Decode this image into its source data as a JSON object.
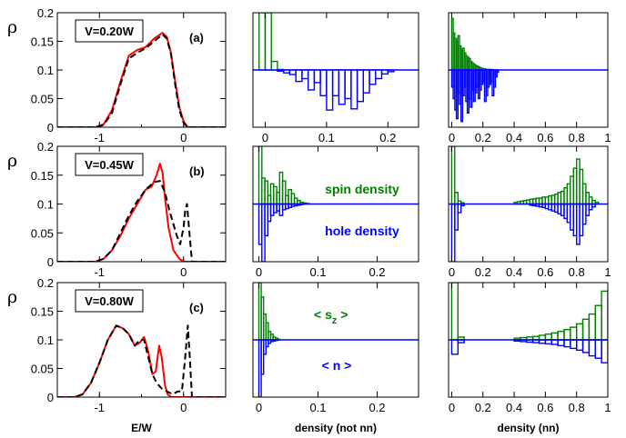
{
  "chart_data": [
    {
      "type": "line",
      "panel": "a",
      "row": 0,
      "col": 0,
      "panel_label": "(a)",
      "box_label": "V=0.20W",
      "ylabel": "ρ",
      "xlabel": "",
      "xlim": [
        -1.5,
        0.5
      ],
      "ylim": [
        0,
        0.2
      ],
      "xticks": [
        -1,
        0
      ],
      "yticks": [
        0,
        0.05,
        0.1,
        0.15,
        0.2
      ],
      "series": [
        {
          "style": "red-solid",
          "x": [
            -1.5,
            -1.05,
            -0.95,
            -0.85,
            -0.75,
            -0.65,
            -0.55,
            -0.45,
            -0.35,
            -0.25,
            -0.2,
            -0.15,
            -0.1,
            -0.05,
            0.0,
            0.05,
            0.5
          ],
          "y": [
            0,
            0,
            0.005,
            0.03,
            0.08,
            0.125,
            0.135,
            0.14,
            0.155,
            0.165,
            0.158,
            0.13,
            0.08,
            0.035,
            0.01,
            0,
            0
          ]
        },
        {
          "style": "black-dashed",
          "x": [
            -1.5,
            -1.05,
            -0.95,
            -0.85,
            -0.75,
            -0.65,
            -0.55,
            -0.45,
            -0.35,
            -0.25,
            -0.2,
            -0.15,
            -0.1,
            -0.05,
            0.0,
            0.05,
            0.5
          ],
          "y": [
            0,
            0,
            0.004,
            0.025,
            0.075,
            0.12,
            0.13,
            0.138,
            0.15,
            0.162,
            0.155,
            0.128,
            0.075,
            0.03,
            0.008,
            0,
            0
          ]
        }
      ]
    },
    {
      "type": "bar",
      "panel": "a-density-not-nn",
      "row": 0,
      "col": 1,
      "xlim": [
        -0.02,
        0.25
      ],
      "ylim": [
        -1,
        1
      ],
      "baseline": 0,
      "bin_width": 0.01,
      "xticks": [
        0,
        0.1,
        0.2
      ],
      "xlabel": "",
      "series": [
        {
          "name": "spin",
          "color": "#008000",
          "x": [
            -0.01,
            0.0,
            0.01,
            0.02
          ],
          "values": [
            1.0,
            1.0,
            0.15,
            0.01
          ]
        },
        {
          "name": "hole",
          "color": "#0000ff",
          "x": [
            0.02,
            0.03,
            0.04,
            0.05,
            0.06,
            0.07,
            0.08,
            0.09,
            0.1,
            0.11,
            0.12,
            0.13,
            0.14,
            0.15,
            0.16,
            0.17,
            0.18,
            0.19,
            0.2
          ],
          "values": [
            -0.02,
            -0.05,
            -0.08,
            -0.2,
            -0.15,
            -0.35,
            -0.22,
            -0.45,
            -0.7,
            -0.45,
            -0.6,
            -0.5,
            -0.68,
            -0.55,
            -0.4,
            -0.25,
            -0.15,
            -0.07,
            -0.03
          ]
        }
      ]
    },
    {
      "type": "bar",
      "panel": "a-density-nn",
      "row": 0,
      "col": 2,
      "xlim": [
        -0.02,
        1.0
      ],
      "ylim": [
        -1,
        1
      ],
      "baseline": 0,
      "bin_width": 0.01,
      "xticks": [
        0,
        0.2,
        0.4,
        0.6,
        0.8,
        1
      ],
      "xlabel": "",
      "series": [
        {
          "name": "spin",
          "color": "#008000",
          "x": [
            0.0,
            0.01,
            0.02,
            0.03,
            0.04,
            0.05,
            0.06,
            0.07,
            0.08,
            0.09,
            0.1,
            0.11,
            0.12,
            0.13,
            0.14,
            0.15,
            0.16,
            0.17,
            0.18,
            0.19,
            0.2,
            0.21,
            0.22,
            0.23,
            0.24,
            0.25
          ],
          "values": [
            0.9,
            0.65,
            0.55,
            0.5,
            0.6,
            0.42,
            0.35,
            0.38,
            0.3,
            0.25,
            0.22,
            0.2,
            0.15,
            0.12,
            0.1,
            0.08,
            0.07,
            0.05,
            0.04,
            0.03,
            0.02,
            0.02,
            0.01,
            0.01,
            0.01,
            0.01
          ]
        },
        {
          "name": "hole",
          "color": "#0000ff",
          "x": [
            0.0,
            0.01,
            0.02,
            0.03,
            0.04,
            0.05,
            0.06,
            0.07,
            0.08,
            0.09,
            0.1,
            0.11,
            0.12,
            0.13,
            0.14,
            0.15,
            0.16,
            0.17,
            0.18,
            0.19,
            0.2,
            0.21,
            0.22,
            0.23,
            0.24,
            0.25,
            0.26,
            0.27,
            0.28,
            0.29
          ],
          "values": [
            -0.3,
            -0.5,
            -0.7,
            -0.85,
            -0.4,
            -0.6,
            -0.9,
            -0.45,
            -0.3,
            -0.55,
            -0.75,
            -0.5,
            -0.65,
            -0.35,
            -0.55,
            -0.4,
            -0.3,
            -0.5,
            -0.35,
            -0.25,
            -0.2,
            -0.55,
            -0.45,
            -0.3,
            -0.25,
            -0.2,
            -0.45,
            -0.3,
            -0.12,
            -0.04
          ]
        }
      ]
    },
    {
      "type": "line",
      "panel": "b",
      "row": 1,
      "col": 0,
      "panel_label": "(b)",
      "box_label": "V=0.45W",
      "ylabel": "ρ",
      "xlabel": "",
      "xlim": [
        -1.5,
        0.5
      ],
      "ylim": [
        0,
        0.2
      ],
      "xticks": [
        -1,
        0
      ],
      "yticks": [
        0,
        0.05,
        0.1,
        0.15,
        0.2
      ],
      "series": [
        {
          "style": "red-solid",
          "x": [
            -1.5,
            -1.05,
            -0.95,
            -0.85,
            -0.75,
            -0.65,
            -0.55,
            -0.45,
            -0.38,
            -0.32,
            -0.28,
            -0.25,
            -0.22,
            -0.18,
            -0.12,
            -0.05,
            0.0,
            0.05,
            0.5
          ],
          "y": [
            0,
            0,
            0.005,
            0.02,
            0.045,
            0.075,
            0.1,
            0.125,
            0.13,
            0.15,
            0.17,
            0.155,
            0.11,
            0.06,
            0.02,
            0.005,
            0,
            0,
            0
          ]
        },
        {
          "style": "black-dashed",
          "x": [
            -1.5,
            -1.05,
            -0.95,
            -0.85,
            -0.75,
            -0.65,
            -0.55,
            -0.45,
            -0.35,
            -0.28,
            -0.22,
            -0.17,
            -0.12,
            -0.08,
            -0.04,
            0.0,
            0.02,
            0.04,
            0.07,
            0.1,
            0.5
          ],
          "y": [
            0,
            0,
            0.005,
            0.02,
            0.05,
            0.08,
            0.105,
            0.125,
            0.138,
            0.14,
            0.12,
            0.09,
            0.065,
            0.045,
            0.03,
            0.06,
            0.09,
            0.1,
            0.05,
            0,
            0
          ]
        }
      ]
    },
    {
      "type": "bar",
      "panel": "b-density-not-nn",
      "row": 1,
      "col": 1,
      "xlim": [
        -0.01,
        0.27
      ],
      "ylim": [
        -1,
        1
      ],
      "baseline": 0,
      "bin_width": 0.005,
      "xticks": [
        0,
        0.1,
        0.2
      ],
      "xlabel": "",
      "annotations": [
        "spin density",
        "hole density"
      ],
      "series": [
        {
          "name": "spin",
          "color": "#008000",
          "x": [
            0.0,
            0.005,
            0.01,
            0.015,
            0.02,
            0.025,
            0.03,
            0.035,
            0.04,
            0.045,
            0.05,
            0.055,
            0.06,
            0.065,
            0.07,
            0.075,
            0.08
          ],
          "values": [
            1.0,
            0.45,
            0.4,
            0.15,
            0.35,
            0.3,
            0.2,
            0.55,
            0.4,
            0.15,
            0.25,
            0.18,
            0.1,
            0.06,
            0.03,
            0.02,
            0.01
          ]
        },
        {
          "name": "hole",
          "color": "#0000ff",
          "x": [
            0.0,
            0.005,
            0.01,
            0.015,
            0.02,
            0.025,
            0.03,
            0.035,
            0.04,
            0.045,
            0.05,
            0.055,
            0.06,
            0.065,
            0.07
          ],
          "values": [
            -0.7,
            -1.0,
            -0.55,
            -0.3,
            -0.2,
            -0.15,
            -0.12,
            -0.2,
            -0.1,
            -0.08,
            -0.06,
            -0.04,
            -0.03,
            -0.02,
            -0.01
          ]
        }
      ]
    },
    {
      "type": "bar",
      "panel": "b-density-nn",
      "row": 1,
      "col": 2,
      "xlim": [
        -0.02,
        1.0
      ],
      "ylim": [
        -1,
        1
      ],
      "baseline": 0,
      "bin_width": 0.02,
      "xticks": [
        0,
        0.2,
        0.4,
        0.6,
        0.8,
        1
      ],
      "xlabel": "",
      "series": [
        {
          "name": "spin",
          "color": "#008000",
          "x": [
            0.0,
            0.02,
            0.04,
            0.06,
            0.4,
            0.42,
            0.44,
            0.46,
            0.48,
            0.5,
            0.52,
            0.54,
            0.56,
            0.58,
            0.6,
            0.62,
            0.64,
            0.66,
            0.68,
            0.7,
            0.72,
            0.74,
            0.76,
            0.78,
            0.8,
            0.82,
            0.84,
            0.86,
            0.88,
            0.9,
            0.92
          ],
          "values": [
            1.0,
            0.2,
            0.05,
            0.02,
            0.03,
            0.04,
            0.05,
            0.06,
            0.07,
            0.08,
            0.09,
            0.1,
            0.1,
            0.12,
            0.12,
            0.14,
            0.15,
            0.17,
            0.2,
            0.22,
            0.28,
            0.35,
            0.48,
            0.62,
            0.78,
            0.6,
            0.35,
            0.2,
            0.12,
            0.06,
            0.03
          ]
        },
        {
          "name": "hole",
          "color": "#0000ff",
          "x": [
            0.0,
            0.02,
            0.04,
            0.06,
            0.5,
            0.52,
            0.54,
            0.56,
            0.58,
            0.6,
            0.62,
            0.64,
            0.66,
            0.68,
            0.7,
            0.72,
            0.74,
            0.76,
            0.78,
            0.8,
            0.82,
            0.84,
            0.86,
            0.88,
            0.9
          ],
          "values": [
            -1.0,
            -0.45,
            -0.15,
            -0.03,
            -0.02,
            -0.03,
            -0.04,
            -0.05,
            -0.06,
            -0.08,
            -0.1,
            -0.12,
            -0.14,
            -0.17,
            -0.2,
            -0.25,
            -0.32,
            -0.45,
            -0.55,
            -0.7,
            -0.55,
            -0.35,
            -0.2,
            -0.1,
            -0.05
          ]
        }
      ]
    },
    {
      "type": "line",
      "panel": "c",
      "row": 2,
      "col": 0,
      "panel_label": "(c)",
      "box_label": "V=0.80W",
      "ylabel": "ρ",
      "xlabel": "E/W",
      "xlim": [
        -1.5,
        0.5
      ],
      "ylim": [
        0,
        0.2
      ],
      "xticks": [
        -1,
        0
      ],
      "yticks": [
        0,
        0.05,
        0.1,
        0.15,
        0.2
      ],
      "series": [
        {
          "style": "red-solid",
          "x": [
            -1.5,
            -1.3,
            -1.2,
            -1.1,
            -1.0,
            -0.9,
            -0.8,
            -0.72,
            -0.65,
            -0.58,
            -0.52,
            -0.47,
            -0.42,
            -0.37,
            -0.33,
            -0.29,
            -0.26,
            -0.22,
            -0.19,
            -0.15,
            -0.1,
            -0.05,
            0.5
          ],
          "y": [
            0,
            0,
            0.005,
            0.025,
            0.06,
            0.1,
            0.125,
            0.12,
            0.11,
            0.09,
            0.095,
            0.105,
            0.08,
            0.04,
            0.045,
            0.09,
            0.07,
            0.02,
            0.005,
            0,
            0,
            0,
            0
          ]
        },
        {
          "style": "black-dashed",
          "x": [
            -1.5,
            -1.3,
            -1.2,
            -1.1,
            -1.0,
            -0.9,
            -0.8,
            -0.72,
            -0.65,
            -0.58,
            -0.52,
            -0.47,
            -0.42,
            -0.37,
            -0.32,
            -0.26,
            -0.2,
            -0.13,
            -0.07,
            -0.02,
            0.02,
            0.05,
            0.07,
            0.1,
            0.5
          ],
          "y": [
            0,
            0,
            0.005,
            0.025,
            0.06,
            0.1,
            0.125,
            0.12,
            0.11,
            0.09,
            0.1,
            0.1,
            0.07,
            0.04,
            0.025,
            0.015,
            0.01,
            0.005,
            0.01,
            0.01,
            0.07,
            0.125,
            0.08,
            0,
            0
          ]
        }
      ]
    },
    {
      "type": "bar",
      "panel": "c-density-not-nn",
      "row": 2,
      "col": 1,
      "xlim": [
        -0.01,
        0.27
      ],
      "ylim": [
        -1,
        1
      ],
      "baseline": 0,
      "bin_width": 0.004,
      "xticks": [
        0,
        0.1,
        0.2
      ],
      "xlabel": "density (not nn)",
      "annotations": [
        "< s",
        "z",
        " >",
        "< n >"
      ],
      "series": [
        {
          "name": "spin",
          "color": "#008000",
          "x": [
            0.0,
            0.004,
            0.008,
            0.012,
            0.016,
            0.02,
            0.024,
            0.028,
            0.032
          ],
          "values": [
            1.0,
            0.75,
            0.45,
            0.3,
            0.15,
            0.1,
            0.05,
            0.03,
            0.01
          ]
        },
        {
          "name": "hole",
          "color": "#0000ff",
          "x": [
            0.0,
            0.004,
            0.008,
            0.012,
            0.016,
            0.02,
            0.024,
            0.028
          ],
          "values": [
            -1.0,
            -0.6,
            -0.25,
            -0.12,
            -0.06,
            -0.03,
            -0.02,
            -0.01
          ]
        }
      ]
    },
    {
      "type": "bar",
      "panel": "c-density-nn",
      "row": 2,
      "col": 2,
      "xlim": [
        -0.02,
        1.0
      ],
      "ylim": [
        -1,
        1
      ],
      "baseline": 0,
      "bin_width": 0.04,
      "xticks": [
        0,
        0.2,
        0.4,
        0.6,
        0.8,
        1
      ],
      "xlabel": "density (nn)",
      "series": [
        {
          "name": "spin",
          "color": "#008000",
          "x": [
            0.0,
            0.04,
            0.4,
            0.44,
            0.48,
            0.52,
            0.56,
            0.6,
            0.64,
            0.68,
            0.72,
            0.76,
            0.8,
            0.84,
            0.88,
            0.92,
            0.96
          ],
          "values": [
            1.0,
            0.05,
            0.03,
            0.04,
            0.05,
            0.06,
            0.08,
            0.1,
            0.12,
            0.15,
            0.18,
            0.22,
            0.28,
            0.36,
            0.45,
            0.6,
            0.85
          ]
        },
        {
          "name": "hole",
          "color": "#0000ff",
          "x": [
            0.0,
            0.04,
            0.4,
            0.44,
            0.48,
            0.52,
            0.56,
            0.6,
            0.64,
            0.68,
            0.72,
            0.76,
            0.8,
            0.84,
            0.88,
            0.92,
            0.96
          ],
          "values": [
            -0.25,
            -0.05,
            -0.02,
            -0.03,
            -0.04,
            -0.05,
            -0.06,
            -0.07,
            -0.08,
            -0.1,
            -0.12,
            -0.15,
            -0.18,
            -0.22,
            -0.28,
            -0.32,
            -0.4
          ]
        }
      ]
    }
  ]
}
